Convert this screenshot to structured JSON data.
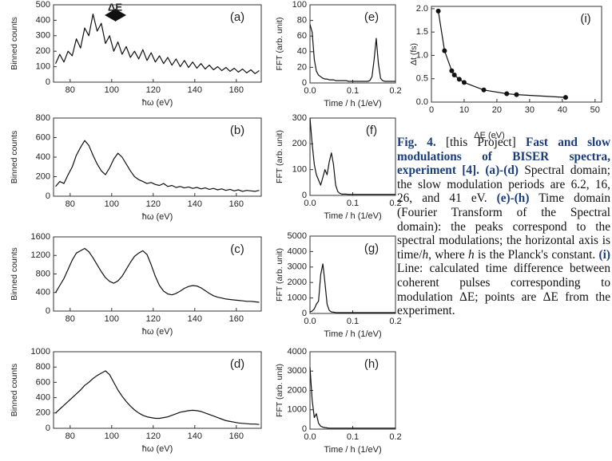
{
  "chart_data": [
    {
      "type": "line",
      "label": "(a)",
      "annotation": "ΔE",
      "ylabel": "Binned counts",
      "xlabel": "ħω (eV)",
      "color": "#111",
      "xlim": [
        72,
        172
      ],
      "xticks": [
        80,
        100,
        120,
        140,
        160
      ],
      "ylim": [
        0,
        500
      ],
      "yticks": [
        0,
        100,
        200,
        300,
        400,
        500
      ],
      "x": [
        73,
        75,
        77,
        79,
        81,
        83,
        85,
        87,
        89,
        91,
        93,
        95,
        97,
        99,
        101,
        103,
        105,
        107,
        109,
        111,
        113,
        115,
        117,
        119,
        121,
        123,
        125,
        127,
        129,
        131,
        133,
        135,
        137,
        139,
        141,
        143,
        145,
        147,
        149,
        151,
        153,
        155,
        157,
        159,
        161,
        163,
        165,
        167,
        169,
        171
      ],
      "values": [
        120,
        180,
        130,
        200,
        170,
        280,
        220,
        350,
        300,
        440,
        330,
        380,
        250,
        300,
        200,
        260,
        180,
        230,
        160,
        200,
        150,
        210,
        140,
        190,
        130,
        170,
        120,
        160,
        110,
        150,
        100,
        140,
        95,
        130,
        90,
        120,
        85,
        110,
        80,
        100,
        75,
        95,
        70,
        90,
        65,
        85,
        60,
        80,
        55,
        75
      ]
    },
    {
      "type": "line",
      "label": "(b)",
      "ylabel": "Binned counts",
      "xlabel": "ħω (eV)",
      "color": "#111",
      "xlim": [
        72,
        172
      ],
      "xticks": [
        80,
        100,
        120,
        140,
        160
      ],
      "ylim": [
        0,
        800
      ],
      "yticks": [
        0,
        200,
        400,
        600,
        800
      ],
      "x": [
        73,
        75,
        77,
        79,
        81,
        83,
        85,
        87,
        89,
        91,
        93,
        95,
        97,
        99,
        101,
        103,
        105,
        107,
        109,
        111,
        113,
        115,
        117,
        119,
        121,
        123,
        125,
        127,
        129,
        131,
        133,
        135,
        137,
        139,
        141,
        143,
        145,
        147,
        149,
        151,
        153,
        155,
        157,
        159,
        161,
        163,
        165,
        167,
        169,
        171
      ],
      "values": [
        100,
        150,
        130,
        220,
        300,
        420,
        500,
        570,
        520,
        420,
        330,
        260,
        220,
        290,
        380,
        440,
        400,
        330,
        260,
        200,
        170,
        150,
        130,
        140,
        120,
        110,
        130,
        100,
        110,
        90,
        100,
        85,
        95,
        80,
        90,
        75,
        85,
        70,
        80,
        65,
        75,
        60,
        70,
        55,
        65,
        50,
        60,
        55,
        50,
        60
      ]
    },
    {
      "type": "line",
      "label": "(c)",
      "ylabel": "Binned counts",
      "xlabel": "ħω (eV)",
      "color": "#111",
      "xlim": [
        72,
        172
      ],
      "xticks": [
        80,
        100,
        120,
        140,
        160
      ],
      "ylim": [
        0,
        1600
      ],
      "yticks": [
        0,
        400,
        800,
        1200,
        1600
      ],
      "x": [
        73,
        75,
        77,
        79,
        81,
        83,
        85,
        87,
        89,
        91,
        93,
        95,
        97,
        99,
        101,
        103,
        105,
        107,
        109,
        111,
        113,
        115,
        117,
        119,
        121,
        123,
        125,
        127,
        129,
        131,
        133,
        135,
        137,
        139,
        141,
        143,
        145,
        147,
        149,
        151,
        153,
        155,
        157,
        159,
        161,
        163,
        165,
        167,
        169,
        171
      ],
      "values": [
        400,
        550,
        700,
        900,
        1100,
        1250,
        1300,
        1350,
        1280,
        1150,
        1000,
        850,
        720,
        640,
        600,
        650,
        750,
        900,
        1050,
        1180,
        1250,
        1300,
        1220,
        1000,
        750,
        550,
        430,
        370,
        350,
        380,
        430,
        490,
        530,
        550,
        540,
        500,
        440,
        380,
        330,
        300,
        280,
        260,
        250,
        240,
        230,
        220,
        210,
        210,
        200,
        190
      ]
    },
    {
      "type": "line",
      "label": "(d)",
      "ylabel": "Binned counts",
      "xlabel": "ħω (eV)",
      "color": "#111",
      "xlim": [
        72,
        172
      ],
      "xticks": [
        80,
        100,
        120,
        140,
        160
      ],
      "ylim": [
        0,
        1000
      ],
      "yticks": [
        0,
        200,
        400,
        600,
        800,
        1000
      ],
      "x": [
        73,
        75,
        77,
        79,
        81,
        83,
        85,
        87,
        89,
        91,
        93,
        95,
        97,
        99,
        101,
        103,
        105,
        107,
        109,
        111,
        113,
        115,
        117,
        119,
        121,
        123,
        125,
        127,
        129,
        131,
        133,
        135,
        137,
        139,
        141,
        143,
        145,
        147,
        149,
        151,
        153,
        155,
        157,
        159,
        161,
        163,
        165,
        167,
        169,
        171
      ],
      "values": [
        200,
        250,
        300,
        350,
        400,
        450,
        500,
        560,
        600,
        650,
        690,
        720,
        750,
        700,
        600,
        500,
        420,
        350,
        290,
        240,
        200,
        170,
        150,
        140,
        130,
        130,
        140,
        150,
        170,
        190,
        210,
        220,
        230,
        235,
        230,
        220,
        200,
        180,
        160,
        140,
        120,
        100,
        90,
        80,
        70,
        65,
        60,
        55,
        55,
        50
      ]
    },
    {
      "type": "line",
      "label": "(e)",
      "ylabel": "FFT (arb. unit)",
      "xlabel": "Time / h (1/eV)",
      "color": "#111",
      "xlim": [
        0,
        0.2
      ],
      "xticks": [
        {
          "value": 0,
          "label": "0.0"
        },
        0.1,
        0.2
      ],
      "ylim": [
        0,
        100
      ],
      "yticks": [
        0,
        20,
        40,
        60,
        80,
        100
      ],
      "x": [
        0,
        0.005,
        0.01,
        0.015,
        0.02,
        0.025,
        0.03,
        0.035,
        0.04,
        0.045,
        0.05,
        0.055,
        0.06,
        0.065,
        0.07,
        0.075,
        0.08,
        0.085,
        0.09,
        0.095,
        0.1,
        0.105,
        0.11,
        0.115,
        0.12,
        0.125,
        0.13,
        0.135,
        0.14,
        0.145,
        0.15,
        0.155,
        0.16,
        0.165,
        0.17,
        0.175,
        0.18,
        0.185,
        0.19,
        0.195,
        0.2
      ],
      "values": [
        75,
        65,
        30,
        15,
        10,
        8,
        6,
        5,
        5,
        4,
        4,
        4,
        3,
        3,
        3,
        3,
        3,
        3,
        2,
        2,
        2,
        2,
        2,
        2,
        2,
        2,
        2,
        2,
        3,
        8,
        30,
        57,
        25,
        6,
        3,
        2,
        2,
        2,
        2,
        2,
        2
      ]
    },
    {
      "type": "line",
      "label": "(f)",
      "ylabel": "FFT (arb. unit)",
      "xlabel": "Time / h (1/eV)",
      "color": "#111",
      "xlim": [
        0,
        0.2
      ],
      "xticks": [
        {
          "value": 0,
          "label": "0.0"
        },
        0.1,
        0.2
      ],
      "ylim": [
        0,
        300
      ],
      "yticks": [
        0,
        100,
        200,
        300
      ],
      "x": [
        0,
        0.005,
        0.01,
        0.015,
        0.02,
        0.025,
        0.03,
        0.035,
        0.04,
        0.045,
        0.05,
        0.055,
        0.06,
        0.065,
        0.07,
        0.075,
        0.08,
        0.085,
        0.09,
        0.095,
        0.1,
        0.105,
        0.11,
        0.115,
        0.12,
        0.125,
        0.13,
        0.135,
        0.14,
        0.145,
        0.15,
        0.155,
        0.16,
        0.165,
        0.17,
        0.175,
        0.18,
        0.185,
        0.19,
        0.195,
        0.2
      ],
      "values": [
        300,
        200,
        120,
        80,
        60,
        40,
        70,
        100,
        80,
        130,
        165,
        120,
        40,
        15,
        8,
        5,
        5,
        5,
        4,
        4,
        4,
        4,
        4,
        4,
        4,
        4,
        4,
        4,
        4,
        4,
        4,
        4,
        4,
        4,
        4,
        4,
        4,
        4,
        4,
        4,
        4
      ]
    },
    {
      "type": "line",
      "label": "(g)",
      "ylabel": "FFT (arb. unit)",
      "xlabel": "Time / h (1/eV)",
      "color": "#111",
      "xlim": [
        0,
        0.2
      ],
      "xticks": [
        {
          "value": 0,
          "label": "0.0"
        },
        0.1,
        0.2
      ],
      "ylim": [
        0,
        5000
      ],
      "yticks": [
        0,
        1000,
        2000,
        3000,
        4000,
        5000
      ],
      "x": [
        0,
        0.005,
        0.01,
        0.015,
        0.02,
        0.025,
        0.03,
        0.035,
        0.04,
        0.045,
        0.05,
        0.055,
        0.06,
        0.065,
        0.07,
        0.075,
        0.08,
        0.085,
        0.09,
        0.095,
        0.1,
        0.105,
        0.11,
        0.115,
        0.12,
        0.125,
        0.13,
        0.135,
        0.14,
        0.145,
        0.15,
        0.155,
        0.16,
        0.165,
        0.17,
        0.175,
        0.18,
        0.185,
        0.19,
        0.195,
        0.2
      ],
      "values": [
        100,
        150,
        300,
        600,
        800,
        2500,
        3200,
        2000,
        600,
        200,
        100,
        80,
        60,
        50,
        50,
        50,
        50,
        50,
        50,
        50,
        50,
        50,
        50,
        50,
        50,
        50,
        50,
        50,
        50,
        50,
        50,
        50,
        50,
        50,
        50,
        50,
        50,
        50,
        50,
        50,
        50
      ]
    },
    {
      "type": "line",
      "label": "(h)",
      "ylabel": "FFT (arb. unit)",
      "xlabel": "Time / h (1/eV)",
      "color": "#111",
      "xlim": [
        0,
        0.2
      ],
      "xticks": [
        {
          "value": 0,
          "label": "0.0"
        },
        0.1,
        0.2
      ],
      "ylim": [
        0,
        4000
      ],
      "yticks": [
        0,
        1000,
        2000,
        3000,
        4000
      ],
      "x": [
        0,
        0.005,
        0.01,
        0.015,
        0.02,
        0.025,
        0.03,
        0.035,
        0.04,
        0.045,
        0.05,
        0.055,
        0.06,
        0.065,
        0.07,
        0.075,
        0.08,
        0.085,
        0.09,
        0.095,
        0.1,
        0.105,
        0.11,
        0.115,
        0.12,
        0.125,
        0.13,
        0.135,
        0.14,
        0.145,
        0.15,
        0.155,
        0.16,
        0.165,
        0.17,
        0.175,
        0.18,
        0.185,
        0.19,
        0.195,
        0.2
      ],
      "values": [
        3200,
        1500,
        600,
        800,
        300,
        150,
        100,
        80,
        60,
        50,
        50,
        50,
        50,
        50,
        50,
        50,
        50,
        50,
        50,
        50,
        50,
        50,
        50,
        50,
        50,
        50,
        50,
        50,
        50,
        50,
        50,
        50,
        50,
        50,
        50,
        50,
        50,
        50,
        50,
        50,
        50
      ]
    },
    {
      "type": "line",
      "label": "(i)",
      "ylabel": "Δt (fs)",
      "xlabel": "ΔE (eV)",
      "color": "#111",
      "markers": true,
      "xlim": [
        0,
        52
      ],
      "xticks": [
        0,
        10,
        20,
        30,
        40,
        50
      ],
      "ylim": [
        0,
        2.05
      ],
      "yticks": [
        {
          "value": 0,
          "label": "0.0"
        },
        0.5,
        {
          "value": 1,
          "label": "1.0"
        },
        1.5,
        {
          "value": 2,
          "label": "2.0"
        }
      ],
      "x": [
        2.1,
        4,
        6.2,
        7,
        8.5,
        10,
        16,
        23,
        26,
        41
      ],
      "values": [
        1.95,
        1.1,
        0.67,
        0.58,
        0.49,
        0.42,
        0.26,
        0.18,
        0.16,
        0.1
      ]
    }
  ],
  "caption": {
    "runs": [
      {
        "text": "Fig. 4.",
        "style": "bold"
      },
      {
        "text": " [this Project] ",
        "style": "normal"
      },
      {
        "text": "Fast and slow modulations of BISER spectra, experiment [4]. (a)-(d)",
        "style": "bold"
      },
      {
        "text": " Spectral domain; the slow modulation periods are 6.2, 16, 26, and 41 eV. ",
        "style": "normal"
      },
      {
        "text": "(e)-(h)",
        "style": "bold"
      },
      {
        "text": " Time domain (Fourier Transform of the Spectral domain): the peaks correspond to the spectral modulations; the horizontal axis is time/",
        "style": "normal"
      },
      {
        "text": "h",
        "style": "italic"
      },
      {
        "text": ", where ",
        "style": "normal"
      },
      {
        "text": "h",
        "style": "italic"
      },
      {
        "text": " is the Planck's constant. ",
        "style": "normal"
      },
      {
        "text": "(i)",
        "style": "bold"
      },
      {
        "text": " Line: calculated time difference between coherent pulses corresponding to modulation ΔE; points are ΔE from the experiment.",
        "style": "normal"
      }
    ]
  }
}
